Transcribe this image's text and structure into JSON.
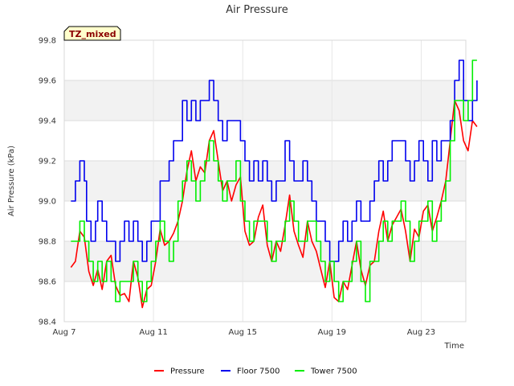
{
  "chart_data": {
    "type": "line",
    "title": "Air Pressure",
    "xlabel": "Time",
    "ylabel": "Air Pressure (kPa)",
    "annotation": "TZ_mixed",
    "xlim": [
      7,
      25
    ],
    "ylim": [
      98.4,
      99.8
    ],
    "x_ticks": [
      {
        "value": 7,
        "label": "Aug 7"
      },
      {
        "value": 11,
        "label": "Aug 11"
      },
      {
        "value": 15,
        "label": "Aug 15"
      },
      {
        "value": 19,
        "label": "Aug 19"
      },
      {
        "value": 23,
        "label": "Aug 23"
      }
    ],
    "y_ticks": [
      {
        "value": 98.4,
        "label": "98.4"
      },
      {
        "value": 98.6,
        "label": "98.6"
      },
      {
        "value": 98.8,
        "label": "98.8"
      },
      {
        "value": 99.0,
        "label": "99.0"
      },
      {
        "value": 99.2,
        "label": "99.2"
      },
      {
        "value": 99.4,
        "label": "99.4"
      },
      {
        "value": 99.6,
        "label": "99.6"
      },
      {
        "value": 99.8,
        "label": "99.8"
      }
    ],
    "legend_position": "bottom",
    "series": [
      {
        "name": "Pressure",
        "color": "#ff0000",
        "step": false,
        "points": [
          [
            7.3,
            98.67
          ],
          [
            7.5,
            98.7
          ],
          [
            7.7,
            98.85
          ],
          [
            7.9,
            98.82
          ],
          [
            8.1,
            98.65
          ],
          [
            8.3,
            98.58
          ],
          [
            8.5,
            98.66
          ],
          [
            8.7,
            98.56
          ],
          [
            8.9,
            98.7
          ],
          [
            9.1,
            98.73
          ],
          [
            9.3,
            98.58
          ],
          [
            9.5,
            98.53
          ],
          [
            9.7,
            98.54
          ],
          [
            9.9,
            98.5
          ],
          [
            10.1,
            98.7
          ],
          [
            10.3,
            98.62
          ],
          [
            10.5,
            98.47
          ],
          [
            10.7,
            98.56
          ],
          [
            10.9,
            98.58
          ],
          [
            11.1,
            98.7
          ],
          [
            11.3,
            98.86
          ],
          [
            11.5,
            98.78
          ],
          [
            11.7,
            98.8
          ],
          [
            11.9,
            98.84
          ],
          [
            12.1,
            98.9
          ],
          [
            12.3,
            99.0
          ],
          [
            12.5,
            99.15
          ],
          [
            12.7,
            99.25
          ],
          [
            12.9,
            99.1
          ],
          [
            13.1,
            99.17
          ],
          [
            13.3,
            99.14
          ],
          [
            13.5,
            99.3
          ],
          [
            13.7,
            99.35
          ],
          [
            13.9,
            99.2
          ],
          [
            14.1,
            99.05
          ],
          [
            14.3,
            99.1
          ],
          [
            14.5,
            99.0
          ],
          [
            14.7,
            99.08
          ],
          [
            14.9,
            99.12
          ],
          [
            15.1,
            98.85
          ],
          [
            15.3,
            98.78
          ],
          [
            15.5,
            98.8
          ],
          [
            15.7,
            98.92
          ],
          [
            15.9,
            98.98
          ],
          [
            16.1,
            98.78
          ],
          [
            16.3,
            98.7
          ],
          [
            16.5,
            98.8
          ],
          [
            16.7,
            98.75
          ],
          [
            16.9,
            98.88
          ],
          [
            17.1,
            99.03
          ],
          [
            17.3,
            98.85
          ],
          [
            17.5,
            98.78
          ],
          [
            17.7,
            98.72
          ],
          [
            17.9,
            98.9
          ],
          [
            18.1,
            98.8
          ],
          [
            18.3,
            98.75
          ],
          [
            18.5,
            98.66
          ],
          [
            18.7,
            98.57
          ],
          [
            18.9,
            98.7
          ],
          [
            19.1,
            98.52
          ],
          [
            19.3,
            98.5
          ],
          [
            19.5,
            98.6
          ],
          [
            19.7,
            98.56
          ],
          [
            19.9,
            98.68
          ],
          [
            20.1,
            98.8
          ],
          [
            20.3,
            98.66
          ],
          [
            20.5,
            98.58
          ],
          [
            20.7,
            98.68
          ],
          [
            20.9,
            98.7
          ],
          [
            21.1,
            98.85
          ],
          [
            21.3,
            98.95
          ],
          [
            21.5,
            98.8
          ],
          [
            21.7,
            98.88
          ],
          [
            21.9,
            98.92
          ],
          [
            22.1,
            98.96
          ],
          [
            22.3,
            98.85
          ],
          [
            22.5,
            98.7
          ],
          [
            22.7,
            98.86
          ],
          [
            22.9,
            98.82
          ],
          [
            23.1,
            98.95
          ],
          [
            23.3,
            98.98
          ],
          [
            23.5,
            98.85
          ],
          [
            23.7,
            98.92
          ],
          [
            23.9,
            99.0
          ],
          [
            24.1,
            99.1
          ],
          [
            24.3,
            99.3
          ],
          [
            24.5,
            99.5
          ],
          [
            24.7,
            99.45
          ],
          [
            24.9,
            99.3
          ],
          [
            25.1,
            99.25
          ],
          [
            25.3,
            99.4
          ],
          [
            25.5,
            99.37
          ]
        ]
      },
      {
        "name": "Floor 7500",
        "color": "#0000ee",
        "step": true,
        "points": [
          [
            7.3,
            99.0
          ],
          [
            7.5,
            99.1
          ],
          [
            7.7,
            99.2
          ],
          [
            7.9,
            99.1
          ],
          [
            8.0,
            98.9
          ],
          [
            8.2,
            98.8
          ],
          [
            8.4,
            98.9
          ],
          [
            8.5,
            99.0
          ],
          [
            8.7,
            98.9
          ],
          [
            8.9,
            98.8
          ],
          [
            9.1,
            98.8
          ],
          [
            9.3,
            98.7
          ],
          [
            9.5,
            98.8
          ],
          [
            9.7,
            98.9
          ],
          [
            9.9,
            98.8
          ],
          [
            10.1,
            98.9
          ],
          [
            10.3,
            98.8
          ],
          [
            10.5,
            98.7
          ],
          [
            10.7,
            98.8
          ],
          [
            10.9,
            98.9
          ],
          [
            11.1,
            98.9
          ],
          [
            11.3,
            99.1
          ],
          [
            11.5,
            99.1
          ],
          [
            11.7,
            99.2
          ],
          [
            11.9,
            99.3
          ],
          [
            12.1,
            99.3
          ],
          [
            12.3,
            99.5
          ],
          [
            12.5,
            99.4
          ],
          [
            12.7,
            99.5
          ],
          [
            12.9,
            99.4
          ],
          [
            13.1,
            99.5
          ],
          [
            13.3,
            99.5
          ],
          [
            13.5,
            99.6
          ],
          [
            13.7,
            99.5
          ],
          [
            13.9,
            99.4
          ],
          [
            14.1,
            99.3
          ],
          [
            14.3,
            99.4
          ],
          [
            14.5,
            99.4
          ],
          [
            14.7,
            99.4
          ],
          [
            14.9,
            99.3
          ],
          [
            15.1,
            99.2
          ],
          [
            15.3,
            99.1
          ],
          [
            15.5,
            99.2
          ],
          [
            15.7,
            99.1
          ],
          [
            15.9,
            99.2
          ],
          [
            16.1,
            99.1
          ],
          [
            16.3,
            99.0
          ],
          [
            16.5,
            99.1
          ],
          [
            16.7,
            99.1
          ],
          [
            16.9,
            99.3
          ],
          [
            17.1,
            99.2
          ],
          [
            17.3,
            99.1
          ],
          [
            17.5,
            99.1
          ],
          [
            17.7,
            99.2
          ],
          [
            17.9,
            99.1
          ],
          [
            18.1,
            99.0
          ],
          [
            18.3,
            98.9
          ],
          [
            18.5,
            98.9
          ],
          [
            18.7,
            98.8
          ],
          [
            18.9,
            98.7
          ],
          [
            19.1,
            98.7
          ],
          [
            19.3,
            98.8
          ],
          [
            19.5,
            98.9
          ],
          [
            19.7,
            98.8
          ],
          [
            19.9,
            98.9
          ],
          [
            20.1,
            99.0
          ],
          [
            20.3,
            98.9
          ],
          [
            20.5,
            98.9
          ],
          [
            20.7,
            99.0
          ],
          [
            20.9,
            99.1
          ],
          [
            21.1,
            99.2
          ],
          [
            21.3,
            99.1
          ],
          [
            21.5,
            99.2
          ],
          [
            21.7,
            99.3
          ],
          [
            21.9,
            99.3
          ],
          [
            22.1,
            99.3
          ],
          [
            22.3,
            99.2
          ],
          [
            22.5,
            99.1
          ],
          [
            22.7,
            99.2
          ],
          [
            22.9,
            99.3
          ],
          [
            23.1,
            99.2
          ],
          [
            23.3,
            99.1
          ],
          [
            23.5,
            99.3
          ],
          [
            23.7,
            99.2
          ],
          [
            23.9,
            99.3
          ],
          [
            24.1,
            99.3
          ],
          [
            24.3,
            99.4
          ],
          [
            24.5,
            99.6
          ],
          [
            24.7,
            99.7
          ],
          [
            24.9,
            99.5
          ],
          [
            25.1,
            99.4
          ],
          [
            25.3,
            99.5
          ],
          [
            25.5,
            99.6
          ]
        ]
      },
      {
        "name": "Tower 7500",
        "color": "#00ee00",
        "step": true,
        "points": [
          [
            7.3,
            98.8
          ],
          [
            7.5,
            98.8
          ],
          [
            7.7,
            98.9
          ],
          [
            7.9,
            98.8
          ],
          [
            8.1,
            98.7
          ],
          [
            8.3,
            98.6
          ],
          [
            8.5,
            98.7
          ],
          [
            8.7,
            98.6
          ],
          [
            8.9,
            98.7
          ],
          [
            9.1,
            98.6
          ],
          [
            9.3,
            98.5
          ],
          [
            9.5,
            98.6
          ],
          [
            9.7,
            98.6
          ],
          [
            9.9,
            98.6
          ],
          [
            10.1,
            98.7
          ],
          [
            10.3,
            98.6
          ],
          [
            10.5,
            98.5
          ],
          [
            10.7,
            98.6
          ],
          [
            10.9,
            98.7
          ],
          [
            11.1,
            98.8
          ],
          [
            11.3,
            98.9
          ],
          [
            11.5,
            98.8
          ],
          [
            11.7,
            98.7
          ],
          [
            11.9,
            98.8
          ],
          [
            12.1,
            99.0
          ],
          [
            12.3,
            99.1
          ],
          [
            12.5,
            99.2
          ],
          [
            12.7,
            99.1
          ],
          [
            12.9,
            99.0
          ],
          [
            13.1,
            99.1
          ],
          [
            13.3,
            99.2
          ],
          [
            13.5,
            99.3
          ],
          [
            13.7,
            99.2
          ],
          [
            13.9,
            99.1
          ],
          [
            14.1,
            99.0
          ],
          [
            14.3,
            99.1
          ],
          [
            14.5,
            99.1
          ],
          [
            14.7,
            99.2
          ],
          [
            14.9,
            99.0
          ],
          [
            15.1,
            98.9
          ],
          [
            15.3,
            98.8
          ],
          [
            15.5,
            98.9
          ],
          [
            15.7,
            98.9
          ],
          [
            15.9,
            98.9
          ],
          [
            16.1,
            98.8
          ],
          [
            16.3,
            98.7
          ],
          [
            16.5,
            98.8
          ],
          [
            16.7,
            98.8
          ],
          [
            16.9,
            98.9
          ],
          [
            17.1,
            99.0
          ],
          [
            17.3,
            98.9
          ],
          [
            17.5,
            98.8
          ],
          [
            17.7,
            98.8
          ],
          [
            17.9,
            98.9
          ],
          [
            18.1,
            98.9
          ],
          [
            18.3,
            98.8
          ],
          [
            18.5,
            98.7
          ],
          [
            18.7,
            98.6
          ],
          [
            18.9,
            98.7
          ],
          [
            19.1,
            98.6
          ],
          [
            19.3,
            98.5
          ],
          [
            19.5,
            98.6
          ],
          [
            19.7,
            98.6
          ],
          [
            19.9,
            98.7
          ],
          [
            20.1,
            98.8
          ],
          [
            20.3,
            98.6
          ],
          [
            20.5,
            98.5
          ],
          [
            20.7,
            98.7
          ],
          [
            20.9,
            98.7
          ],
          [
            21.1,
            98.8
          ],
          [
            21.3,
            98.9
          ],
          [
            21.5,
            98.8
          ],
          [
            21.7,
            98.9
          ],
          [
            21.9,
            98.9
          ],
          [
            22.1,
            99.0
          ],
          [
            22.3,
            98.9
          ],
          [
            22.5,
            98.7
          ],
          [
            22.7,
            98.8
          ],
          [
            22.9,
            98.9
          ],
          [
            23.1,
            98.9
          ],
          [
            23.3,
            99.0
          ],
          [
            23.5,
            98.8
          ],
          [
            23.7,
            98.9
          ],
          [
            23.9,
            99.0
          ],
          [
            24.1,
            99.1
          ],
          [
            24.3,
            99.3
          ],
          [
            24.5,
            99.5
          ],
          [
            24.7,
            99.5
          ],
          [
            24.9,
            99.4
          ],
          [
            25.1,
            99.5
          ],
          [
            25.3,
            99.7
          ],
          [
            25.5,
            99.7
          ]
        ]
      }
    ]
  }
}
